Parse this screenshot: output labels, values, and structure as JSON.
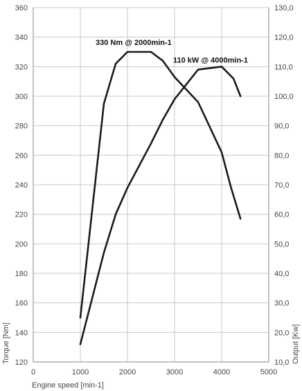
{
  "chart_data": {
    "type": "line",
    "xlabel": "Engine speed [min-1]",
    "ylabel_left": "Torque [Nm]",
    "ylabel_right": "Output [Kw]",
    "xlim": [
      0,
      5000
    ],
    "ylim_left": [
      120,
      360
    ],
    "ylim_right": [
      10,
      130
    ],
    "grid": true,
    "x_ticks": [
      "0",
      "1000",
      "2000",
      "3000",
      "4000",
      "5000"
    ],
    "y_left_ticks": [
      "120",
      "140",
      "160",
      "180",
      "200",
      "220",
      "240",
      "260",
      "280",
      "300",
      "320",
      "340",
      "360"
    ],
    "y_right_ticks": [
      "10,0",
      "20,0",
      "30,0",
      "40,0",
      "50,0",
      "60,0",
      "70,0",
      "80,0",
      "90,0",
      "100,0",
      "110,0",
      "120,0",
      "130,0"
    ],
    "series": [
      {
        "axis": "left",
        "points": [
          [
            1000,
            150
          ],
          [
            1500,
            295
          ],
          [
            1750,
            322
          ],
          [
            2000,
            330
          ],
          [
            2500,
            330
          ],
          [
            2750,
            324
          ],
          [
            3000,
            313
          ],
          [
            3500,
            296
          ],
          [
            4000,
            262
          ],
          [
            4200,
            238
          ],
          [
            4400,
            217
          ]
        ]
      },
      {
        "axis": "right",
        "points": [
          [
            1000,
            16
          ],
          [
            1500,
            47
          ],
          [
            1750,
            60
          ],
          [
            2000,
            69
          ],
          [
            2500,
            84
          ],
          [
            2750,
            92
          ],
          [
            3000,
            99
          ],
          [
            3500,
            109
          ],
          [
            4000,
            110
          ],
          [
            4250,
            106
          ],
          [
            4400,
            100
          ]
        ]
      }
    ],
    "annotations": [
      {
        "text": "330 Nm @ 2000min-1",
        "x": 2000,
        "y": 330,
        "axis": "left"
      },
      {
        "text": "110 kW @ 4000min-1",
        "x": 4000,
        "y": 110,
        "axis": "right"
      }
    ]
  }
}
